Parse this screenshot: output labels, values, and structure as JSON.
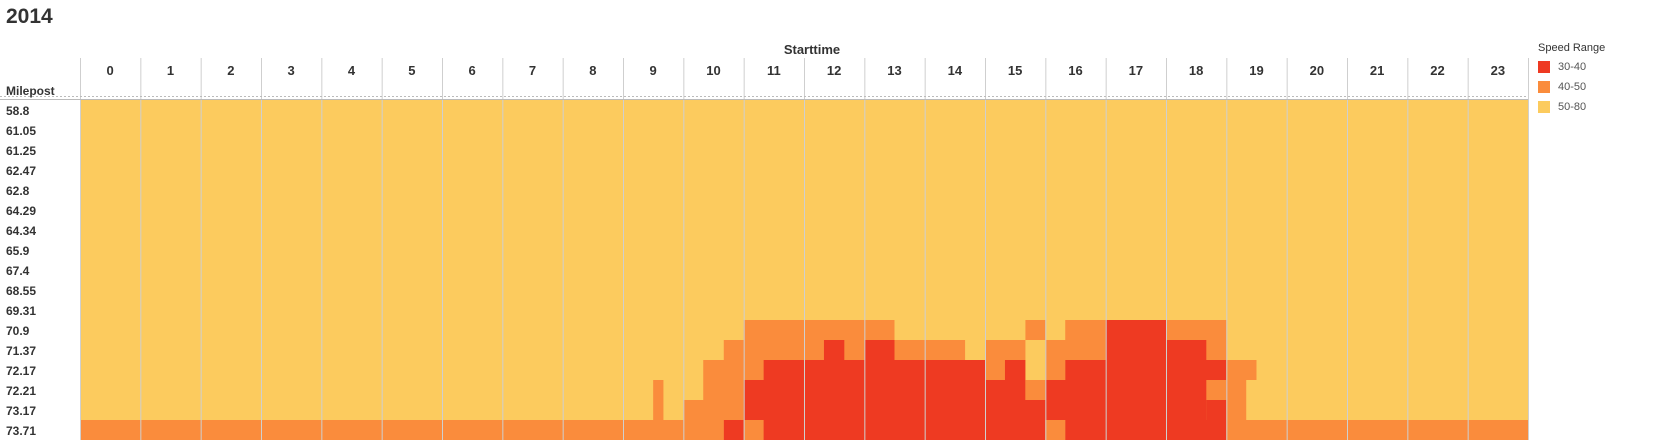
{
  "title": "2014",
  "chart_data": {
    "type": "heatmap",
    "title": "2014",
    "xlabel": "Starttime",
    "ylabel": "Milepost",
    "x_ticks": [
      "0",
      "1",
      "2",
      "3",
      "4",
      "5",
      "6",
      "7",
      "8",
      "9",
      "10",
      "11",
      "12",
      "13",
      "14",
      "15",
      "16",
      "17",
      "18",
      "19",
      "20",
      "21",
      "22",
      "23"
    ],
    "y_ticks": [
      "58.8",
      "61.05",
      "61.25",
      "62.47",
      "62.8",
      "64.29",
      "64.34",
      "65.9",
      "67.4",
      "68.55",
      "69.31",
      "70.9",
      "71.37",
      "72.17",
      "72.21",
      "73.17",
      "73.71"
    ],
    "legend": {
      "title": "Speed Range",
      "items": [
        {
          "label": "30-40",
          "color": "#ee3a22"
        },
        {
          "label": "40-50",
          "color": "#fa8c3c"
        },
        {
          "label": "50-80",
          "color": "#fccb5e"
        }
      ]
    },
    "grid": true,
    "time_resolution_minutes": 20,
    "default_speed_range": "50-80",
    "cells": [
      {
        "milepost": "70.9",
        "range": "40-50",
        "start": 11.0,
        "end": 13.5
      },
      {
        "milepost": "70.9",
        "range": "40-50",
        "start": 15.67,
        "end": 16.0
      },
      {
        "milepost": "70.9",
        "range": "40-50",
        "start": 16.33,
        "end": 17.0
      },
      {
        "milepost": "70.9",
        "range": "30-40",
        "start": 17.0,
        "end": 18.0
      },
      {
        "milepost": "70.9",
        "range": "40-50",
        "start": 18.0,
        "end": 19.0
      },
      {
        "milepost": "71.37",
        "range": "40-50",
        "start": 10.67,
        "end": 12.33
      },
      {
        "milepost": "71.37",
        "range": "30-40",
        "start": 12.33,
        "end": 12.67
      },
      {
        "milepost": "71.37",
        "range": "40-50",
        "start": 12.67,
        "end": 13.0
      },
      {
        "milepost": "71.37",
        "range": "30-40",
        "start": 13.0,
        "end": 13.5
      },
      {
        "milepost": "71.37",
        "range": "40-50",
        "start": 13.5,
        "end": 14.67
      },
      {
        "milepost": "71.37",
        "range": "40-50",
        "start": 15.0,
        "end": 15.67
      },
      {
        "milepost": "71.37",
        "range": "40-50",
        "start": 16.0,
        "end": 17.0
      },
      {
        "milepost": "71.37",
        "range": "30-40",
        "start": 17.0,
        "end": 18.67
      },
      {
        "milepost": "71.37",
        "range": "40-50",
        "start": 18.67,
        "end": 19.0
      },
      {
        "milepost": "72.17",
        "range": "40-50",
        "start": 10.33,
        "end": 11.33
      },
      {
        "milepost": "72.17",
        "range": "30-40",
        "start": 11.33,
        "end": 15.0
      },
      {
        "milepost": "72.17",
        "range": "40-50",
        "start": 15.0,
        "end": 15.33
      },
      {
        "milepost": "72.17",
        "range": "30-40",
        "start": 15.33,
        "end": 15.67
      },
      {
        "milepost": "72.17",
        "range": "40-50",
        "start": 16.0,
        "end": 16.33
      },
      {
        "milepost": "72.17",
        "range": "30-40",
        "start": 16.33,
        "end": 19.0
      },
      {
        "milepost": "72.17",
        "range": "40-50",
        "start": 19.0,
        "end": 19.5
      },
      {
        "milepost": "72.21",
        "range": "40-50",
        "start": 9.5,
        "end": 9.67
      },
      {
        "milepost": "72.21",
        "range": "40-50",
        "start": 10.33,
        "end": 11.0
      },
      {
        "milepost": "72.21",
        "range": "30-40",
        "start": 11.0,
        "end": 15.67
      },
      {
        "milepost": "72.21",
        "range": "40-50",
        "start": 15.67,
        "end": 16.0
      },
      {
        "milepost": "72.21",
        "range": "30-40",
        "start": 16.0,
        "end": 18.67
      },
      {
        "milepost": "72.21",
        "range": "40-50",
        "start": 18.67,
        "end": 19.33
      },
      {
        "milepost": "73.17",
        "range": "40-50",
        "start": 9.5,
        "end": 9.67
      },
      {
        "milepost": "73.17",
        "range": "40-50",
        "start": 10.0,
        "end": 11.0
      },
      {
        "milepost": "73.17",
        "range": "30-40",
        "start": 11.0,
        "end": 18.67
      },
      {
        "milepost": "73.17",
        "range": "30-40",
        "start": 18.67,
        "end": 19.0
      },
      {
        "milepost": "73.17",
        "range": "40-50",
        "start": 19.0,
        "end": 19.33
      },
      {
        "milepost": "73.71",
        "range": "40-50",
        "start": 0.0,
        "end": 10.67
      },
      {
        "milepost": "73.71",
        "range": "30-40",
        "start": 10.67,
        "end": 11.0
      },
      {
        "milepost": "73.71",
        "range": "40-50",
        "start": 11.0,
        "end": 11.33
      },
      {
        "milepost": "73.71",
        "range": "30-40",
        "start": 11.33,
        "end": 16.0
      },
      {
        "milepost": "73.71",
        "range": "40-50",
        "start": 16.0,
        "end": 16.33
      },
      {
        "milepost": "73.71",
        "range": "30-40",
        "start": 16.33,
        "end": 19.0
      },
      {
        "milepost": "73.71",
        "range": "40-50",
        "start": 19.0,
        "end": 24.0
      }
    ]
  }
}
